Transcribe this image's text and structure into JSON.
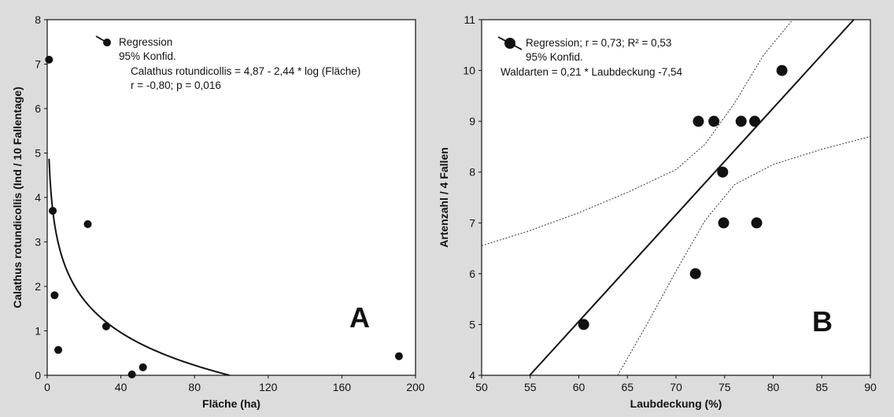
{
  "chart_data": [
    {
      "panel": "A",
      "type": "scatter",
      "xlabel": "Fläche (ha)",
      "ylabel": "Calathus rotundicollis (Ind / 10 Fallentage)",
      "xlim": [
        0,
        200
      ],
      "ylim": [
        0,
        8
      ],
      "xticks": [
        0,
        40,
        80,
        120,
        160,
        200
      ],
      "yticks": [
        0,
        1,
        2,
        3,
        4,
        5,
        6,
        7,
        8
      ],
      "points": [
        {
          "x": 1,
          "y": 7.1
        },
        {
          "x": 3,
          "y": 3.7
        },
        {
          "x": 4,
          "y": 1.8
        },
        {
          "x": 6,
          "y": 0.57
        },
        {
          "x": 22,
          "y": 3.4
        },
        {
          "x": 32,
          "y": 1.1
        },
        {
          "x": 46,
          "y": 0.02
        },
        {
          "x": 52,
          "y": 0.18
        },
        {
          "x": 191,
          "y": 0.43
        }
      ],
      "regression": {
        "intercept": 4.87,
        "slope": -2.44,
        "transform": "log10"
      },
      "legend": {
        "regression": "Regression",
        "confidence": "95% Konfid.",
        "equation": "Calathus rotundicollis = 4,87 - 2,44 * log (Fläche)",
        "stats": "r = -0,80; p = 0,016"
      },
      "grid": false,
      "legend_position": "top-left",
      "panel_label_position": "bottom-right"
    },
    {
      "panel": "B",
      "type": "scatter",
      "xlabel": "Laubdeckung (%)",
      "ylabel": "Artenzahl / 4 Fallen",
      "xlim": [
        50,
        90
      ],
      "ylim": [
        4,
        11
      ],
      "xticks": [
        50,
        55,
        60,
        65,
        70,
        75,
        80,
        85,
        90
      ],
      "yticks": [
        4,
        5,
        6,
        7,
        8,
        9,
        10,
        11
      ],
      "points": [
        {
          "x": 60.5,
          "y": 5
        },
        {
          "x": 72.0,
          "y": 6
        },
        {
          "x": 72.3,
          "y": 9
        },
        {
          "x": 73.9,
          "y": 9
        },
        {
          "x": 74.8,
          "y": 8
        },
        {
          "x": 74.9,
          "y": 7
        },
        {
          "x": 76.7,
          "y": 9
        },
        {
          "x": 78.1,
          "y": 9
        },
        {
          "x": 78.3,
          "y": 7
        },
        {
          "x": 80.9,
          "y": 10
        }
      ],
      "regression": {
        "intercept": -7.54,
        "slope": 0.21
      },
      "confidence_band": {
        "upper": [
          [
            50,
            6.55
          ],
          [
            55,
            6.85
          ],
          [
            60,
            7.2
          ],
          [
            65,
            7.6
          ],
          [
            70,
            8.05
          ],
          [
            73,
            8.55
          ],
          [
            76,
            9.35
          ],
          [
            79,
            10.3
          ],
          [
            82,
            11.0
          ]
        ],
        "lower": [
          [
            64,
            4.0
          ],
          [
            67,
            5.0
          ],
          [
            70,
            6.05
          ],
          [
            73,
            7.05
          ],
          [
            76,
            7.75
          ],
          [
            80,
            8.15
          ],
          [
            85,
            8.45
          ],
          [
            90,
            8.7
          ]
        ]
      },
      "legend": {
        "regression": "Regression; r = 0,73; R² = 0,53",
        "confidence": "95% Konfid.",
        "equation": "Waldarten = 0,21 * Laubdeckung -7,54"
      },
      "grid": false,
      "legend_position": "top-left",
      "panel_label_position": "bottom-right"
    }
  ],
  "panel_labels": {
    "a": "A",
    "b": "B"
  }
}
